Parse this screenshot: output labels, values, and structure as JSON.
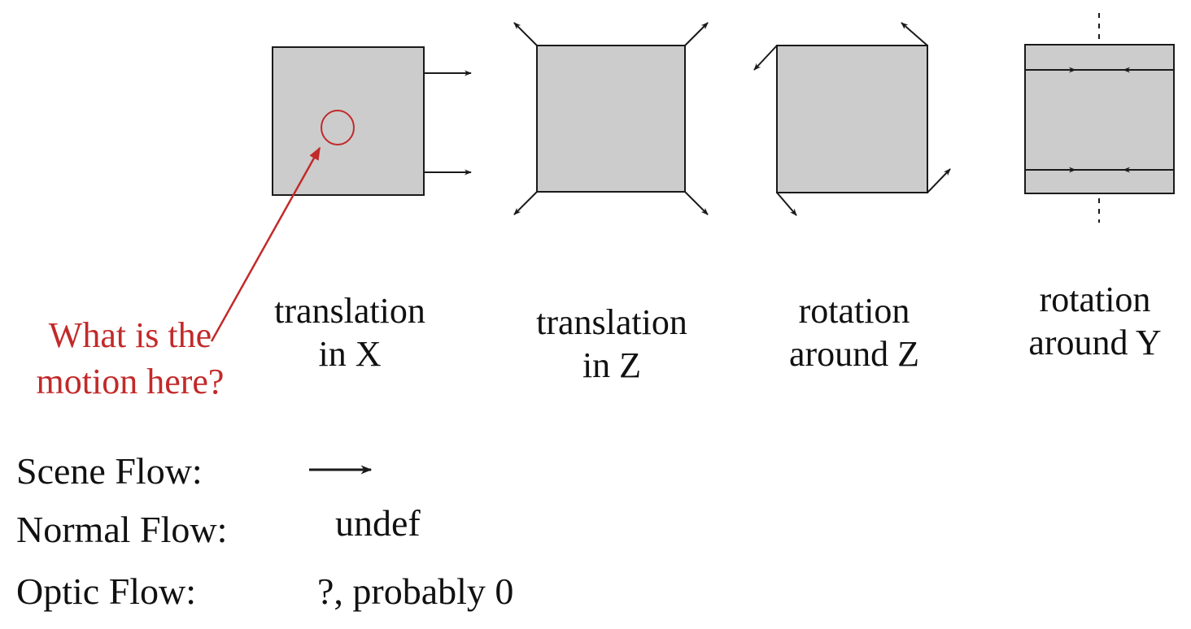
{
  "colors": {
    "square_fill": "#cccccc",
    "stroke": "#1a1a1a",
    "annotation": "#c22a2a",
    "text": "#111111"
  },
  "panels": [
    {
      "label_line1": "translation",
      "label_line2": "in X"
    },
    {
      "label_line1": "translation",
      "label_line2": "in Z"
    },
    {
      "label_line1": "rotation",
      "label_line2": "around Z"
    },
    {
      "label_line1": "rotation",
      "label_line2": "around Y"
    }
  ],
  "annotation": {
    "line1": "What is the",
    "line2": "motion here?"
  },
  "flows": [
    {
      "name": "Scene Flow:",
      "value": ""
    },
    {
      "name": "Normal Flow:",
      "value": "undef"
    },
    {
      "name": "Optic Flow:",
      "value": "?, probably 0"
    }
  ]
}
